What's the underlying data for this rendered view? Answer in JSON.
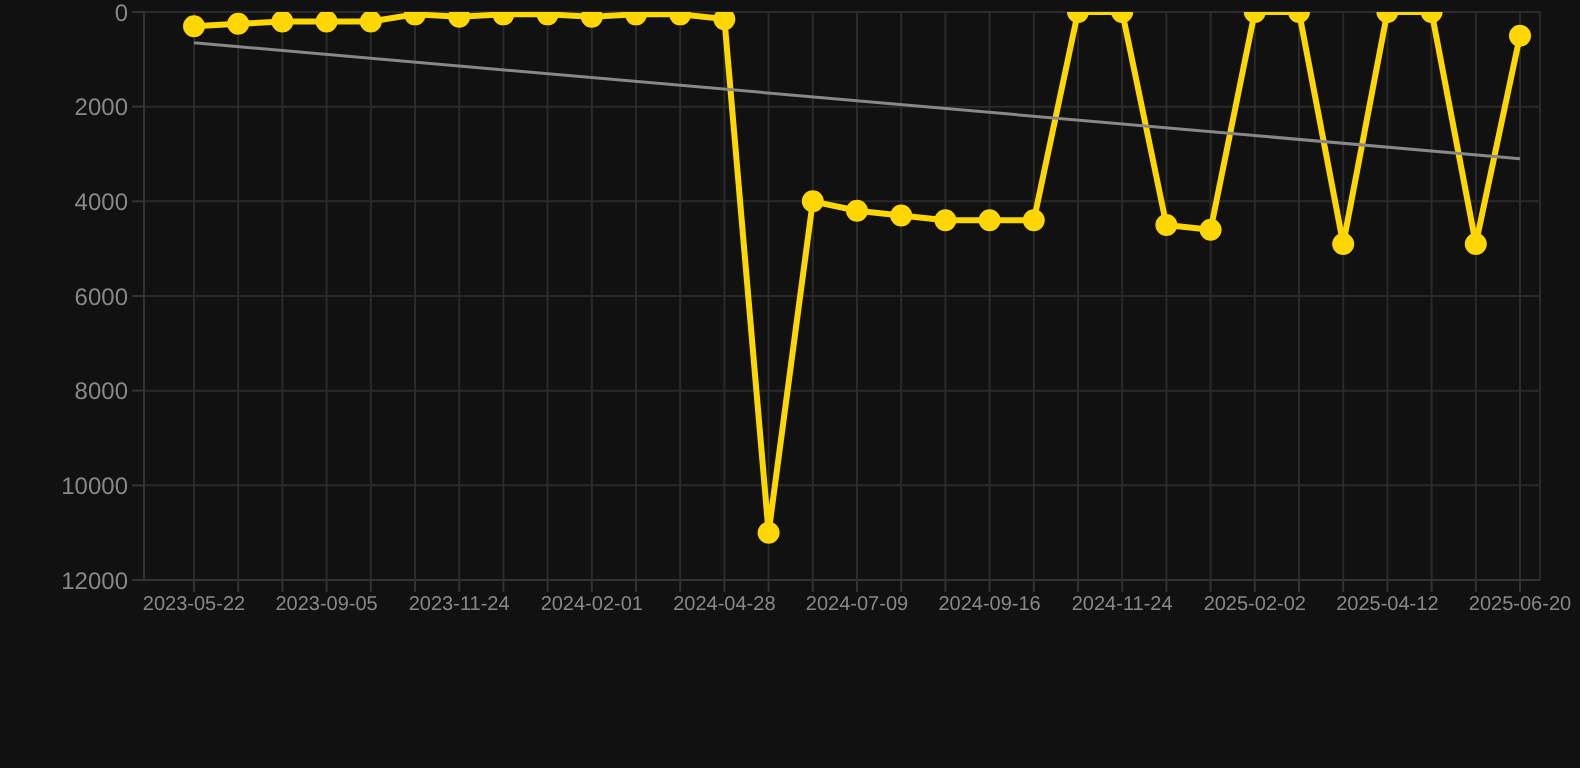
{
  "chart_data": {
    "type": "line",
    "categories": [
      "2023-05-22",
      null,
      null,
      "2023-09-05",
      null,
      null,
      "2023-11-24",
      null,
      null,
      "2024-02-01",
      null,
      null,
      "2024-04-28",
      null,
      null,
      "2024-07-09",
      null,
      null,
      "2024-09-16",
      null,
      null,
      "2024-11-24",
      null,
      null,
      "2025-02-02",
      null,
      null,
      "2025-04-12",
      null,
      null,
      "2025-06-20"
    ],
    "series": [
      {
        "color": "#ffd700",
        "marker": "circle",
        "values": [
          300,
          250,
          200,
          200,
          200,
          50,
          100,
          50,
          50,
          100,
          50,
          50,
          150,
          11000,
          4000,
          4200,
          4300,
          4400,
          4400,
          4400,
          0,
          0,
          4500,
          4600,
          0,
          0,
          4900,
          0,
          0,
          4900,
          500
        ]
      },
      {
        "type": "line",
        "color": "#888888",
        "marker": "none",
        "values": [
          650,
          null,
          null,
          null,
          null,
          null,
          null,
          null,
          null,
          null,
          null,
          null,
          null,
          null,
          null,
          null,
          null,
          null,
          null,
          null,
          null,
          null,
          null,
          null,
          null,
          null,
          null,
          null,
          null,
          null,
          3100
        ]
      }
    ],
    "ylim": [
      12000,
      0
    ],
    "yticks": [
      0,
      2000,
      4000,
      6000,
      8000,
      10000,
      12000
    ],
    "grid": true,
    "legend": false
  }
}
